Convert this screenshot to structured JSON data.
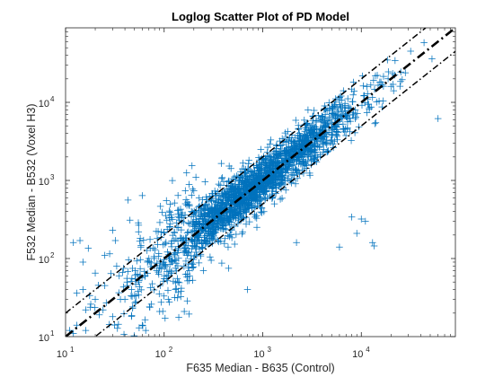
{
  "chart_data": {
    "type": "scatter",
    "title": "Loglog Scatter Plot of PD Model",
    "xlabel": "F635 Median - B635 (Control)",
    "ylabel": "F532 Median - B532 (Voxel H3)",
    "xscale": "log",
    "yscale": "log",
    "xlim": [
      10,
      90000
    ],
    "ylim": [
      10,
      90000
    ],
    "x_ticks": [
      {
        "base": "10",
        "exp": "1",
        "value": 10
      },
      {
        "base": "10",
        "exp": "2",
        "value": 100
      },
      {
        "base": "10",
        "exp": "3",
        "value": 1000
      },
      {
        "base": "10",
        "exp": "4",
        "value": 10000
      }
    ],
    "y_ticks": [
      {
        "base": "10",
        "exp": "1",
        "value": 10
      },
      {
        "base": "10",
        "exp": "2",
        "value": 100
      },
      {
        "base": "10",
        "exp": "3",
        "value": 1000
      },
      {
        "base": "10",
        "exp": "4",
        "value": 10000
      }
    ],
    "grid": false,
    "legend": "none",
    "marker": "+",
    "marker_color": "#0072BD",
    "reference_lines": [
      {
        "style": "dash-dot",
        "weight": "heavy",
        "points": [
          [
            10,
            10
          ],
          [
            90000,
            90000
          ]
        ]
      },
      {
        "style": "dash-dot",
        "weight": "light",
        "points": [
          [
            10,
            20
          ],
          [
            45000,
            90000
          ]
        ]
      },
      {
        "style": "dash-dot",
        "weight": "light",
        "points": [
          [
            10,
            5
          ],
          [
            90000,
            45000
          ]
        ]
      }
    ],
    "series": [
      {
        "marker": "+",
        "color": "#0072BD",
        "cloud": {
          "x_range": [
            12,
            60000
          ],
          "relation": "y ≈ x",
          "spread_factor": 2
        },
        "outliers": [
          [
            60000,
            6200
          ],
          [
            20000,
            16000
          ],
          [
            21000,
            17000
          ],
          [
            25000,
            18500
          ],
          [
            26000,
            19500
          ],
          [
            13000,
            160
          ],
          [
            13500,
            145
          ],
          [
            2200,
            2200
          ],
          [
            10000,
            320
          ],
          [
            11000,
            300
          ],
          [
            15,
            90
          ],
          [
            20,
            65
          ],
          [
            17,
            135
          ],
          [
            30,
            230
          ],
          [
            32,
            170
          ],
          [
            45,
            310
          ],
          [
            60,
            640
          ],
          [
            43,
            560
          ],
          [
            55,
            220
          ],
          [
            170,
            480
          ],
          [
            180,
            490
          ],
          [
            150,
            360
          ],
          [
            200,
            740
          ],
          [
            260,
            960
          ],
          [
            210,
            1100
          ],
          [
            380,
            1650
          ],
          [
            15,
            40
          ],
          [
            13,
            36
          ],
          [
            18,
            26
          ],
          [
            20,
            30
          ],
          [
            22,
            19
          ],
          [
            30,
            18
          ],
          [
            40,
            30
          ],
          [
            48,
            24
          ],
          [
            55,
            50
          ],
          [
            90,
            21
          ],
          [
            130,
            40
          ],
          [
            160,
            21
          ],
          [
            180,
            70
          ],
          [
            120,
            90
          ],
          [
            25,
            110
          ],
          [
            12,
            160
          ],
          [
            14,
            170
          ],
          [
            28,
            115
          ],
          [
            80,
            80
          ],
          [
            60,
            14
          ],
          [
            65,
            12
          ],
          [
            300,
            95
          ],
          [
            450,
            75
          ],
          [
            350,
            170
          ],
          [
            2200,
            160
          ],
          [
            700,
            40
          ],
          [
            11,
            12
          ],
          [
            12,
            11
          ],
          [
            13,
            14
          ],
          [
            16,
            12
          ],
          [
            9000,
            210
          ],
          [
            8000,
            340
          ],
          [
            6000,
            140
          ],
          [
            16,
            22
          ],
          [
            24,
            22
          ],
          [
            35,
            60
          ],
          [
            33,
            80
          ],
          [
            42,
            50
          ],
          [
            70,
            100
          ],
          [
            58,
            140
          ],
          [
            100,
            55
          ],
          [
            110,
            30
          ],
          [
            250,
            70
          ],
          [
            85,
            180
          ],
          [
            25,
            45
          ],
          [
            36,
            30
          ],
          [
            55,
            34
          ]
        ]
      }
    ]
  }
}
